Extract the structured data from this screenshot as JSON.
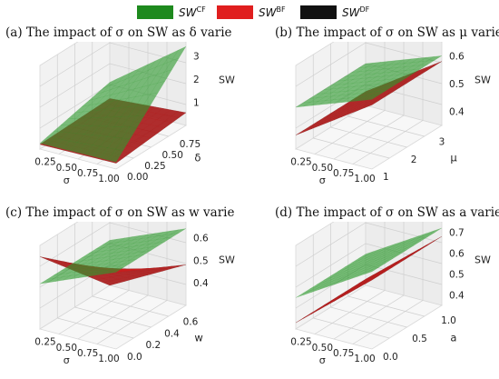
{
  "legend": {
    "cf": {
      "base": "SW",
      "sup": "CF",
      "color": "#1e8a1e"
    },
    "bf": {
      "base": "SW",
      "sup": "BF",
      "color": "#e01e1e"
    },
    "df": {
      "base": "SW",
      "sup": "DF",
      "color": "#111111"
    }
  },
  "chart_data": [
    {
      "type": "surface3d",
      "title": "(a) The impact of σ on SW as δ varie",
      "xlabel": "σ",
      "ylabel": "δ",
      "zlabel": "SW",
      "xticks": [
        "0.25",
        "0.50",
        "0.75",
        "1.00"
      ],
      "yticks": [
        "0.00",
        "0.25",
        "0.50",
        "0.75"
      ],
      "zticks": [
        "1",
        "2",
        "3"
      ],
      "xlim": [
        0.1,
        1.0
      ],
      "ylim": [
        0.0,
        1.0
      ],
      "zlim": [
        0,
        3.6
      ],
      "series": [
        {
          "name": "SW^CF",
          "color": "#2e9a2e",
          "corners": {
            "x0y0": 0.25,
            "x1y0": 0.3,
            "x0y1": 1.0,
            "x1y1": 3.4
          }
        },
        {
          "name": "SW^BF",
          "color": "#d42020",
          "corners": {
            "x0y0": 0.2,
            "x1y0": 0.25,
            "x0y1": 0.3,
            "x1y1": 0.55
          }
        },
        {
          "name": "SW^DF",
          "color": "#111111",
          "corners": {
            "x0y0": 0.2,
            "x1y0": 0.25,
            "x0y1": 0.3,
            "x1y1": 0.55
          }
        }
      ]
    },
    {
      "type": "surface3d",
      "title": "(b) The impact of σ on SW as μ varie",
      "xlabel": "σ",
      "ylabel": "μ",
      "zlabel": "SW",
      "xticks": [
        "0.25",
        "0.50",
        "0.75",
        "1.00"
      ],
      "yticks": [
        "1",
        "2",
        "3"
      ],
      "zticks": [
        "0.4",
        "0.5",
        "0.6"
      ],
      "xlim": [
        0.1,
        1.0
      ],
      "ylim": [
        1,
        3.5
      ],
      "zlim": [
        0.35,
        0.65
      ],
      "series": [
        {
          "name": "SW^CF",
          "color": "#2e9a2e",
          "corners": {
            "x0y0": 0.5,
            "x1y0": 0.6,
            "x0y1": 0.5,
            "x1y1": 0.6
          }
        },
        {
          "name": "SW^BF",
          "color": "#d42020",
          "corners": {
            "x0y0": 0.4,
            "x1y0": 0.58,
            "x0y1": 0.4,
            "x1y1": 0.58
          }
        },
        {
          "name": "SW^DF",
          "color": "#111111",
          "corners": {
            "x0y0": 0.4,
            "x1y0": 0.58,
            "x0y1": 0.4,
            "x1y1": 0.58
          }
        }
      ]
    },
    {
      "type": "surface3d",
      "title": "(c) The impact of σ on SW as w varie",
      "xlabel": "σ",
      "ylabel": "w",
      "zlabel": "SW",
      "xticks": [
        "0.25",
        "0.50",
        "0.75",
        "1.00"
      ],
      "yticks": [
        "0.0",
        "0.2",
        "0.4",
        "0.6"
      ],
      "zticks": [
        "0.4",
        "0.5",
        "0.6"
      ],
      "xlim": [
        0.1,
        1.0
      ],
      "ylim": [
        0.0,
        0.75
      ],
      "zlim": [
        0.3,
        0.67
      ],
      "series": [
        {
          "name": "SW^CF",
          "color": "#2e9a2e",
          "corners": {
            "x0y0": 0.5,
            "x1y0": 0.64,
            "x0y1": 0.5,
            "x1y1": 0.64
          }
        },
        {
          "name": "SW^BF",
          "color": "#d42020",
          "corners": {
            "x0y0": 0.62,
            "x1y0": 0.64,
            "x0y1": 0.3,
            "x1y1": 0.48
          }
        },
        {
          "name": "SW^DF",
          "color": "#111111",
          "corners": {
            "x0y0": 0.62,
            "x1y0": 0.64,
            "x0y1": 0.3,
            "x1y1": 0.48
          }
        }
      ]
    },
    {
      "type": "surface3d",
      "title": "(d) The impact of σ on SW as a varies",
      "xlabel": "σ",
      "ylabel": "a",
      "zlabel": "SW",
      "xticks": [
        "0.25",
        "0.50",
        "0.75",
        "1.00"
      ],
      "yticks": [
        "0.0",
        "0.5",
        "1.0"
      ],
      "zticks": [
        "0.4",
        "0.5",
        "0.6",
        "0.7"
      ],
      "xlim": [
        0.1,
        1.0
      ],
      "ylim": [
        0.0,
        1.2
      ],
      "zlim": [
        0.35,
        0.75
      ],
      "series": [
        {
          "name": "SW^CF",
          "color": "#2e9a2e",
          "corners": {
            "x0y0": 0.5,
            "x1y0": 0.72,
            "x0y1": 0.5,
            "x1y1": 0.72
          }
        },
        {
          "name": "SW^BF",
          "color": "#d42020",
          "corners": {
            "x0y0": 0.38,
            "x1y0": 0.68,
            "x0y1": 0.38,
            "x1y1": 0.68
          }
        },
        {
          "name": "SW^DF",
          "color": "#111111",
          "corners": {
            "x0y0": 0.38,
            "x1y0": 0.68,
            "x0y1": 0.38,
            "x1y1": 0.68
          }
        }
      ]
    }
  ]
}
